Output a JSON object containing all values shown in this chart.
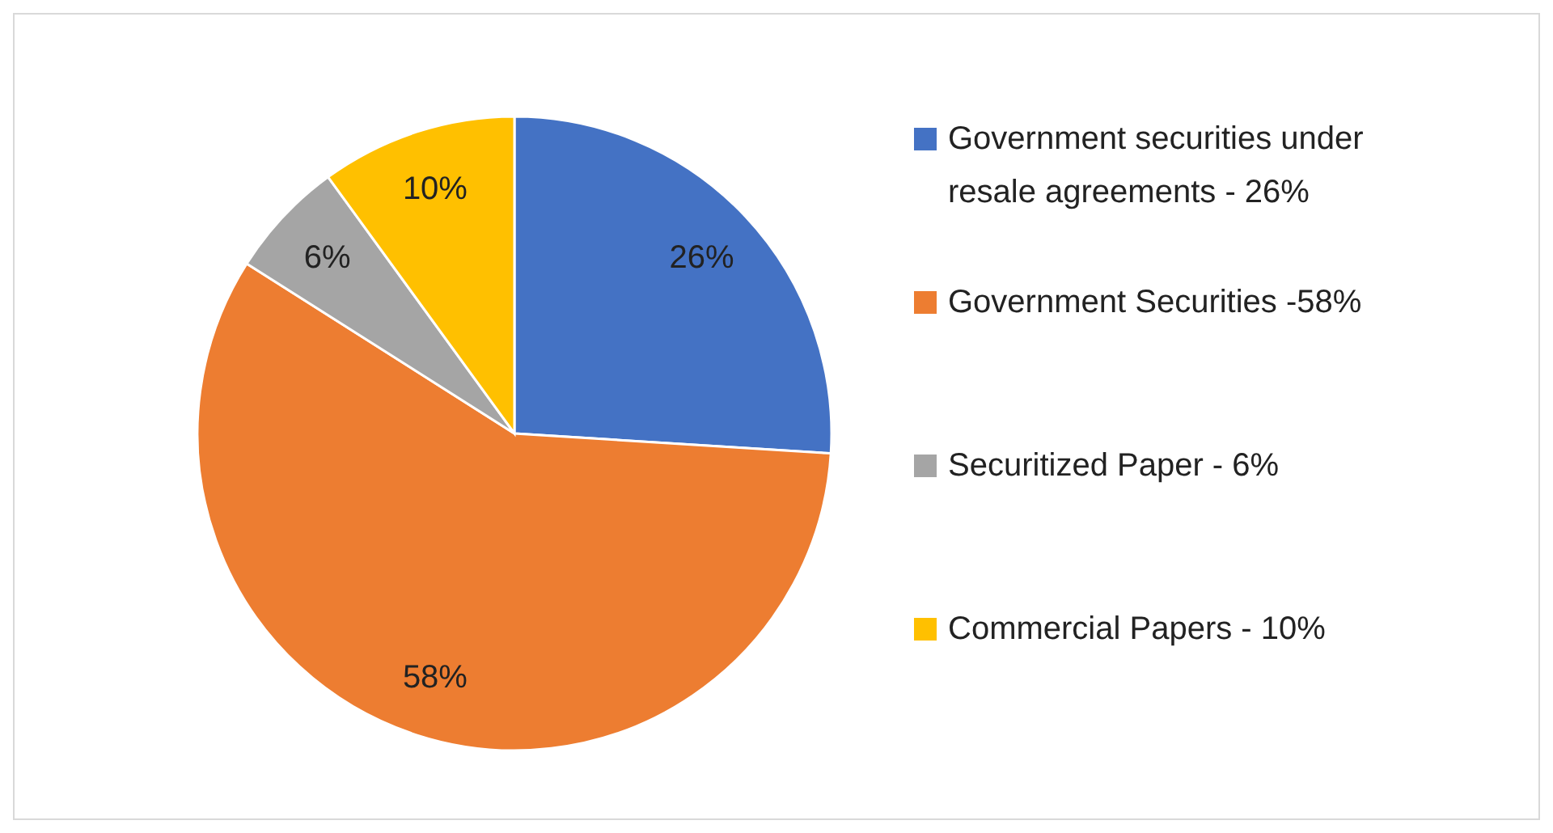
{
  "chart_data": {
    "type": "pie",
    "categories": [
      "Government securities under resale agreements - 26%",
      "Government Securities -58%",
      "Securitized Paper - 6%",
      "Commercial Papers - 10%"
    ],
    "values": [
      26,
      58,
      6,
      10
    ],
    "colors": [
      "#4472c4",
      "#ed7d31",
      "#a5a5a5",
      "#ffc000"
    ],
    "value_labels": [
      "26%",
      "58%",
      "6%",
      "10%"
    ],
    "legend": "right"
  }
}
